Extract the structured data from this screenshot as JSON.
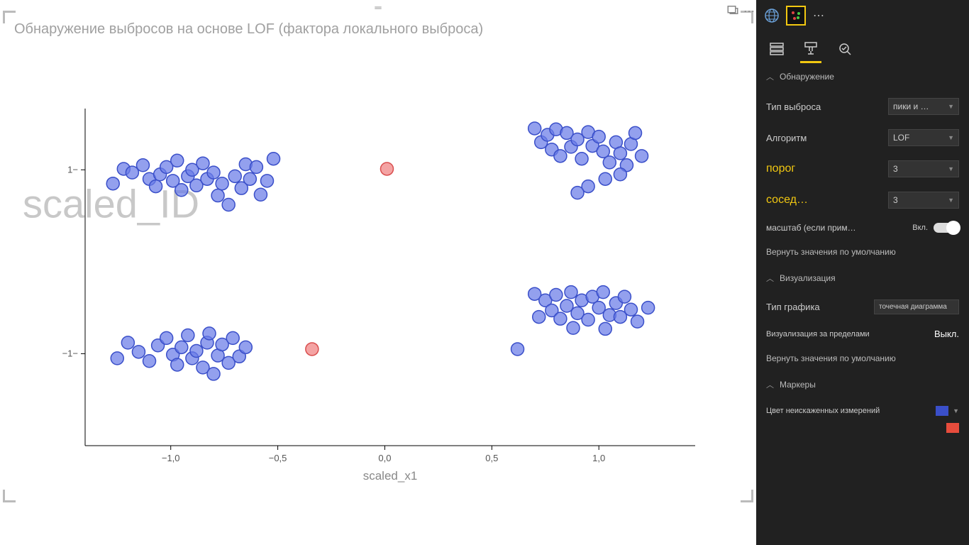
{
  "chart": {
    "title": "Обнаружение выбросов на основе LOF (фактора локального выброса)",
    "type": "scatter",
    "xlabel": "scaled_x1",
    "ylabel_watermark": "scaled_ID",
    "xlim": [
      -1.4,
      1.45
    ],
    "ylim": [
      -2.0,
      1.55
    ],
    "xticks": [
      {
        "v": -1.0,
        "label": "−1,0"
      },
      {
        "v": -0.5,
        "label": "−0,5"
      },
      {
        "v": 0.0,
        "label": "0,0"
      },
      {
        "v": 0.5,
        "label": "0,5"
      },
      {
        "v": 1.0,
        "label": "1,0"
      }
    ],
    "yticks": [
      {
        "v": 1.0,
        "label": "1−"
      },
      {
        "v": -1.0,
        "label": "−1−"
      }
    ],
    "marker_radius": 9,
    "marker_stroke_width": 1.5,
    "marker_fill_opacity": 0.72,
    "normal_color": {
      "fill": "#6a7ce8",
      "stroke": "#3a4fc9"
    },
    "outlier_color": {
      "fill": "#f08080",
      "stroke": "#d94e4e"
    },
    "axis_color": "#000000",
    "tick_text_color": "#555555",
    "axis_label_color": "#888888",
    "watermark_color": "#c8c8c8",
    "background_color": "#ffffff",
    "normal_points": [
      [
        -1.27,
        0.85
      ],
      [
        -1.22,
        1.01
      ],
      [
        -1.18,
        0.97
      ],
      [
        -1.13,
        1.05
      ],
      [
        -1.1,
        0.9
      ],
      [
        -1.07,
        0.82
      ],
      [
        -1.05,
        0.95
      ],
      [
        -1.02,
        1.03
      ],
      [
        -0.99,
        0.88
      ],
      [
        -0.97,
        1.1
      ],
      [
        -0.95,
        0.78
      ],
      [
        -0.92,
        0.93
      ],
      [
        -0.9,
        1.0
      ],
      [
        -0.88,
        0.83
      ],
      [
        -0.85,
        1.07
      ],
      [
        -0.83,
        0.9
      ],
      [
        -0.8,
        0.97
      ],
      [
        -0.78,
        0.72
      ],
      [
        -0.76,
        0.85
      ],
      [
        -0.73,
        0.62
      ],
      [
        -0.7,
        0.93
      ],
      [
        -0.67,
        0.8
      ],
      [
        -0.65,
        1.06
      ],
      [
        -0.63,
        0.9
      ],
      [
        -0.6,
        1.03
      ],
      [
        -0.58,
        0.73
      ],
      [
        -0.55,
        0.88
      ],
      [
        -0.52,
        1.12
      ],
      [
        -1.25,
        -1.05
      ],
      [
        -1.2,
        -0.88
      ],
      [
        -1.15,
        -0.98
      ],
      [
        -1.1,
        -1.08
      ],
      [
        -1.06,
        -0.91
      ],
      [
        -1.02,
        -0.83
      ],
      [
        -0.99,
        -1.01
      ],
      [
        -0.97,
        -1.12
      ],
      [
        -0.95,
        -0.93
      ],
      [
        -0.92,
        -0.8
      ],
      [
        -0.9,
        -1.05
      ],
      [
        -0.88,
        -0.97
      ],
      [
        -0.85,
        -1.15
      ],
      [
        -0.83,
        -0.88
      ],
      [
        -0.82,
        -0.78
      ],
      [
        -0.8,
        -1.22
      ],
      [
        -0.78,
        -1.02
      ],
      [
        -0.76,
        -0.9
      ],
      [
        -0.73,
        -1.1
      ],
      [
        -0.71,
        -0.83
      ],
      [
        -0.68,
        -1.03
      ],
      [
        -0.65,
        -0.93
      ],
      [
        0.7,
        1.45
      ],
      [
        0.73,
        1.3
      ],
      [
        0.76,
        1.38
      ],
      [
        0.78,
        1.22
      ],
      [
        0.8,
        1.44
      ],
      [
        0.82,
        1.15
      ],
      [
        0.85,
        1.4
      ],
      [
        0.87,
        1.25
      ],
      [
        0.9,
        1.33
      ],
      [
        0.92,
        1.12
      ],
      [
        0.95,
        1.41
      ],
      [
        0.97,
        1.26
      ],
      [
        1.0,
        1.36
      ],
      [
        1.02,
        1.2
      ],
      [
        1.05,
        1.08
      ],
      [
        1.08,
        1.3
      ],
      [
        1.1,
        1.18
      ],
      [
        1.13,
        1.05
      ],
      [
        1.15,
        1.28
      ],
      [
        1.17,
        1.4
      ],
      [
        1.2,
        1.15
      ],
      [
        1.1,
        0.95
      ],
      [
        0.95,
        0.82
      ],
      [
        0.9,
        0.75
      ],
      [
        1.03,
        0.9
      ],
      [
        0.62,
        -0.95
      ],
      [
        0.7,
        -0.35
      ],
      [
        0.72,
        -0.6
      ],
      [
        0.75,
        -0.42
      ],
      [
        0.78,
        -0.53
      ],
      [
        0.8,
        -0.36
      ],
      [
        0.82,
        -0.62
      ],
      [
        0.85,
        -0.48
      ],
      [
        0.87,
        -0.33
      ],
      [
        0.9,
        -0.56
      ],
      [
        0.92,
        -0.42
      ],
      [
        0.95,
        -0.63
      ],
      [
        0.97,
        -0.38
      ],
      [
        1.0,
        -0.5
      ],
      [
        1.02,
        -0.33
      ],
      [
        1.05,
        -0.58
      ],
      [
        1.08,
        -0.45
      ],
      [
        1.1,
        -0.6
      ],
      [
        1.12,
        -0.38
      ],
      [
        1.15,
        -0.52
      ],
      [
        1.18,
        -0.65
      ],
      [
        1.23,
        -0.5
      ],
      [
        0.88,
        -0.72
      ],
      [
        1.03,
        -0.73
      ]
    ],
    "outlier_points": [
      [
        0.01,
        1.01
      ],
      [
        -0.34,
        -0.95
      ]
    ]
  },
  "sidebar": {
    "tabs": {
      "fields": "fields",
      "format": "format",
      "analytics": "analytics"
    },
    "section1": {
      "title": "Обнаружение",
      "outlier_type_label": "Тип выброса",
      "outlier_type_value": "пики и …",
      "algorithm_label": "Алгоритм",
      "algorithm_value": "LOF",
      "threshold_label": "порог",
      "threshold_value": "3",
      "neighbor_label": "сосед…",
      "neighbor_value": "3",
      "scale_label": "масштаб (если прим…",
      "scale_toggle": "Вкл.",
      "reset": "Вернуть значения по умолчанию"
    },
    "section2": {
      "title": "Визуализация",
      "chart_type_label": "Тип графика",
      "chart_type_value": "точечная диаграмма",
      "viz_outside_label": "Визуализация за пределами",
      "viz_outside_value": "Выкл.",
      "reset": "Вернуть значения по умолчанию"
    },
    "section3": {
      "title": "Маркеры",
      "color_label": "Цвет неискаженных измерений",
      "normal_swatch": "#3a4fc9",
      "outlier_swatch": "#e74c3c"
    }
  }
}
